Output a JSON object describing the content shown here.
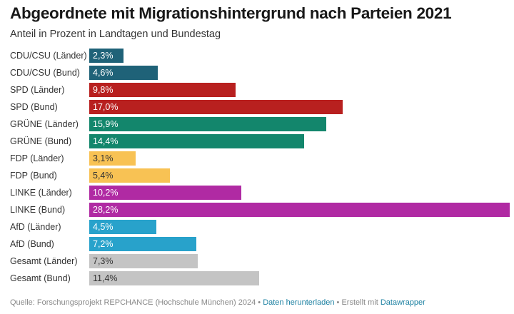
{
  "chart_data": {
    "type": "bar",
    "orientation": "horizontal",
    "title": "Abgeordnete mit Migrationshintergrund nach Parteien 2021",
    "subtitle": "Anteil in Prozent in Landtagen und Bundestag",
    "xlabel": "",
    "ylabel": "",
    "xlim": [
      0,
      28.2
    ],
    "grid": false,
    "categories": [
      "CDU/CSU (Länder)",
      "CDU/CSU (Bund)",
      "SPD (Länder)",
      "SPD (Bund)",
      "GRÜNE (Länder)",
      "GRÜNE (Bund)",
      "FDP (Länder)",
      "FDP (Bund)",
      "LINKE (Länder)",
      "LINKE (Bund)",
      "AfD (Länder)",
      "AfD (Bund)",
      "Gesamt (Länder)",
      "Gesamt (Bund)"
    ],
    "values": [
      2.3,
      4.6,
      9.8,
      17.0,
      15.9,
      14.4,
      3.1,
      5.4,
      10.2,
      28.2,
      4.5,
      7.2,
      7.3,
      11.4
    ],
    "value_labels": [
      "2,3%",
      "4,6%",
      "9,8%",
      "17,0%",
      "15,9%",
      "14,4%",
      "3,1%",
      "5,4%",
      "10,2%",
      "28,2%",
      "4,5%",
      "7,2%",
      "7,3%",
      "11,4%"
    ],
    "colors": [
      "#1f6278",
      "#1f6278",
      "#b8201f",
      "#b8201f",
      "#13866c",
      "#13866c",
      "#f8c254",
      "#f8c254",
      "#b02aa3",
      "#b02aa3",
      "#28a2cb",
      "#28a2cb",
      "#c4c4c4",
      "#c4c4c4"
    ],
    "label_colors": [
      "#ffffff",
      "#ffffff",
      "#ffffff",
      "#ffffff",
      "#ffffff",
      "#ffffff",
      "#333333",
      "#333333",
      "#ffffff",
      "#ffffff",
      "#ffffff",
      "#ffffff",
      "#333333",
      "#333333"
    ]
  },
  "footer": {
    "source": "Quelle: Forschungsprojekt REPCHANCE (Hochschule München) 2024",
    "separator": " • ",
    "download_link": "Daten herunterladen",
    "created_with": "Erstellt mit ",
    "datawrapper_link": "Datawrapper"
  }
}
